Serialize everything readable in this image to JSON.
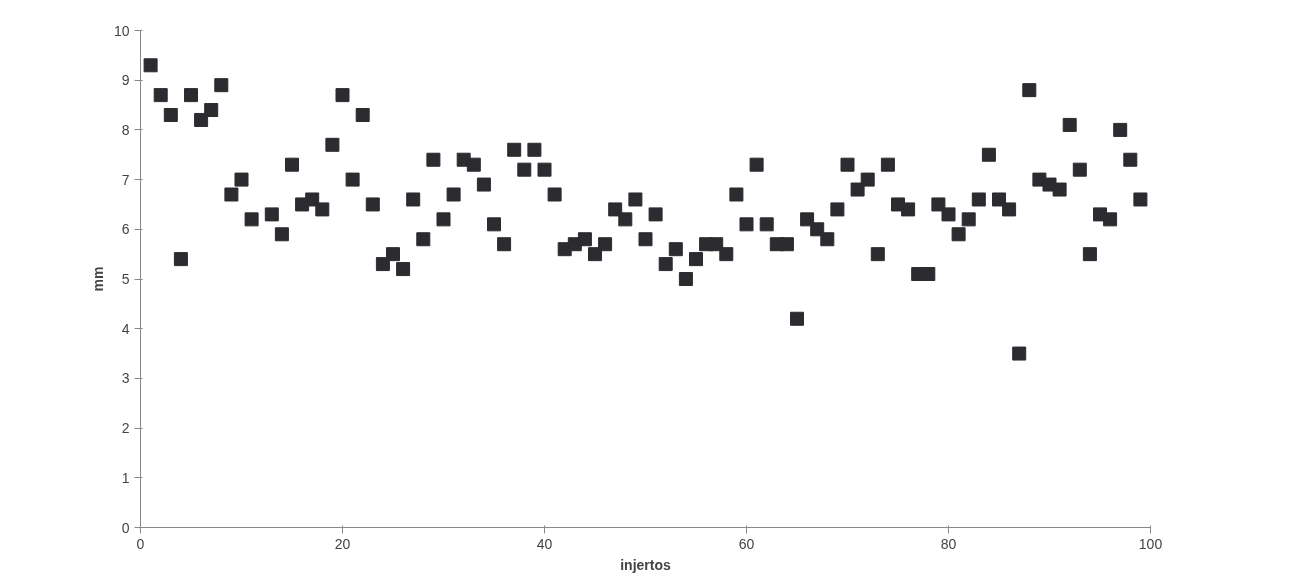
{
  "chart_data": {
    "type": "scatter",
    "xlabel": "injertos",
    "ylabel": "mm",
    "marker": "square",
    "grid": false,
    "xlim": [
      0,
      100
    ],
    "xticks": [
      0,
      20,
      40,
      60,
      80,
      100
    ],
    "ylim": [
      0,
      10
    ],
    "yticks": [
      0,
      1,
      2,
      3,
      4,
      5,
      6,
      7,
      8,
      9,
      10
    ],
    "series": [
      {
        "color": "#2b2b30",
        "x": [
          1,
          2,
          3,
          4,
          5,
          6,
          7,
          8,
          9,
          10,
          11,
          13,
          14,
          15,
          16,
          17,
          18,
          19,
          20,
          21,
          22,
          23,
          24,
          25,
          26,
          27,
          28,
          29,
          30,
          31,
          32,
          33,
          34,
          35,
          36,
          37,
          38,
          39,
          40,
          41,
          42,
          43,
          44,
          45,
          46,
          47,
          48,
          49,
          50,
          51,
          52,
          53,
          54,
          55,
          56,
          57,
          58,
          59,
          60,
          61,
          62,
          63,
          64,
          65,
          66,
          67,
          68,
          69,
          70,
          71,
          72,
          73,
          74,
          75,
          76,
          77,
          78,
          79,
          80,
          81,
          82,
          83,
          84,
          85,
          86,
          87,
          88,
          89,
          90,
          91,
          92,
          93,
          94,
          95,
          96,
          97,
          98,
          99
        ],
        "values": [
          9.3,
          8.7,
          8.3,
          5.4,
          8.7,
          8.2,
          8.4,
          8.9,
          6.7,
          7.0,
          6.2,
          6.3,
          5.9,
          7.3,
          6.5,
          6.6,
          6.4,
          7.7,
          8.7,
          7.0,
          8.3,
          6.5,
          5.3,
          5.5,
          5.2,
          6.6,
          5.8,
          7.4,
          6.2,
          6.7,
          7.4,
          7.3,
          6.9,
          6.1,
          5.7,
          7.6,
          7.2,
          7.6,
          7.2,
          6.7,
          5.6,
          5.7,
          5.8,
          5.5,
          5.7,
          6.4,
          6.2,
          6.6,
          5.8,
          6.3,
          5.3,
          5.6,
          5.0,
          5.4,
          5.7,
          5.7,
          5.5,
          6.7,
          6.1,
          7.3,
          6.1,
          5.7,
          5.7,
          4.2,
          6.2,
          6.0,
          5.8,
          6.4,
          7.3,
          6.8,
          7.0,
          5.5,
          7.3,
          6.5,
          6.4,
          5.1,
          5.1,
          6.5,
          6.3,
          5.9,
          6.2,
          6.6,
          7.5,
          6.6,
          6.4,
          3.5,
          8.8,
          7.0,
          6.9,
          6.8,
          8.1,
          7.2,
          5.5,
          6.3,
          6.2,
          8.0,
          7.4,
          6.6
        ]
      }
    ]
  }
}
